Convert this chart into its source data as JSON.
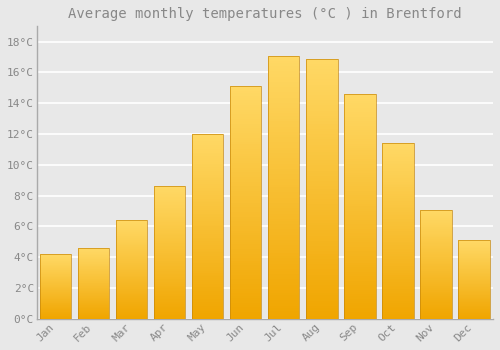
{
  "months": [
    "Jan",
    "Feb",
    "Mar",
    "Apr",
    "May",
    "Jun",
    "Jul",
    "Aug",
    "Sep",
    "Oct",
    "Nov",
    "Dec"
  ],
  "temperatures": [
    4.2,
    4.6,
    6.4,
    8.6,
    12.0,
    15.1,
    17.1,
    16.9,
    14.6,
    11.4,
    7.1,
    5.1
  ],
  "bar_color_top": "#FFD966",
  "bar_color_bottom": "#F0A500",
  "bar_edge_color": "#C8880A",
  "title": "Average monthly temperatures (°C ) in Brentford",
  "title_fontsize": 10,
  "ylim": [
    0,
    19
  ],
  "yticks": [
    0,
    2,
    4,
    6,
    8,
    10,
    12,
    14,
    16,
    18
  ],
  "ytick_labels": [
    "0°C",
    "2°C",
    "4°C",
    "6°C",
    "8°C",
    "10°C",
    "12°C",
    "14°C",
    "16°C",
    "18°C"
  ],
  "background_color": "#e8e8e8",
  "grid_color": "#ffffff",
  "tick_label_color": "#888888",
  "tick_label_fontsize": 8,
  "bar_width": 0.82,
  "left_spine_color": "#aaaaaa"
}
